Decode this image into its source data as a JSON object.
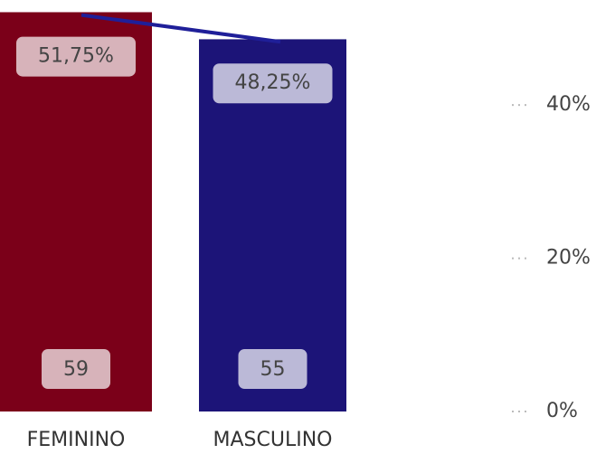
{
  "chart_data": {
    "type": "bar_line",
    "categories": [
      "FEMININO",
      "MASCULINO"
    ],
    "ylim": [
      0,
      60
    ],
    "y2lim": [
      0,
      53
    ],
    "y2ticks": [
      {
        "value": 0,
        "label": "0%"
      },
      {
        "value": 20,
        "label": "20%"
      },
      {
        "value": 40,
        "label": "40%"
      }
    ],
    "series": [
      {
        "type": "bar",
        "colors": [
          "#7b0019",
          "#1c1478"
        ],
        "values": [
          59,
          55
        ]
      },
      {
        "type": "line",
        "axis": "y2",
        "color": "#1f1f99",
        "values": [
          51.75,
          48.25
        ],
        "value_labels": [
          "51,75%",
          "48,25%"
        ]
      }
    ]
  }
}
